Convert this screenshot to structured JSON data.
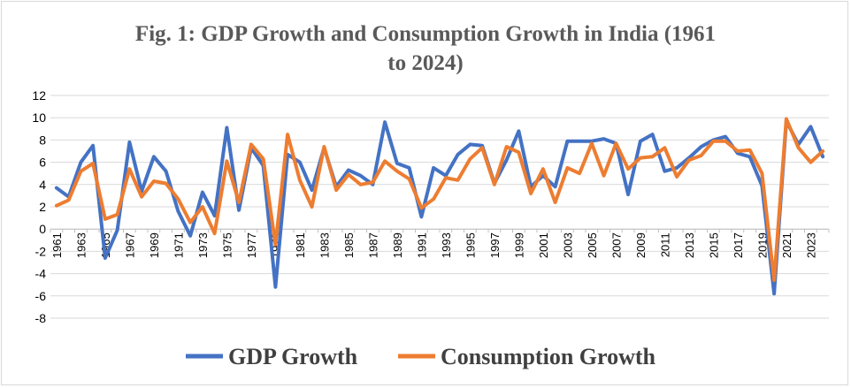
{
  "chart_data": {
    "type": "line",
    "title_line1": "Fig. 1: GDP Growth and Consumption Growth in India (1961",
    "title_line2": "to 2024)",
    "xlabel": "",
    "ylabel": "",
    "ylim": [
      -8,
      12
    ],
    "yticks": [
      12,
      10,
      8,
      6,
      4,
      2,
      0,
      -2,
      -4,
      -6,
      -8
    ],
    "x": [
      1961,
      1962,
      1963,
      1964,
      1965,
      1966,
      1967,
      1968,
      1969,
      1970,
      1971,
      1972,
      1973,
      1974,
      1975,
      1976,
      1977,
      1978,
      1979,
      1980,
      1981,
      1982,
      1983,
      1984,
      1985,
      1986,
      1987,
      1988,
      1989,
      1990,
      1991,
      1992,
      1993,
      1994,
      1995,
      1996,
      1997,
      1998,
      1999,
      2000,
      2001,
      2002,
      2003,
      2004,
      2005,
      2006,
      2007,
      2008,
      2009,
      2010,
      2011,
      2012,
      2013,
      2014,
      2015,
      2016,
      2017,
      2018,
      2019,
      2020,
      2021,
      2022,
      2023,
      2024
    ],
    "xtick_labels": [
      "1961",
      "1963",
      "1965",
      "1967",
      "1969",
      "1971",
      "1973",
      "1975",
      "1977",
      "1979",
      "1981",
      "1983",
      "1985",
      "1987",
      "1989",
      "1991",
      "1993",
      "1995",
      "1997",
      "1999",
      "2001",
      "2003",
      "2005",
      "2007",
      "2009",
      "2011",
      "2013",
      "2015",
      "2017",
      "2019",
      "2021",
      "2023"
    ],
    "series": [
      {
        "name": "GDP Growth",
        "color": "#4472c4",
        "values": [
          3.7,
          2.9,
          6.0,
          7.5,
          -2.6,
          -0.1,
          7.8,
          3.4,
          6.5,
          5.2,
          1.6,
          -0.6,
          3.3,
          1.2,
          9.1,
          1.7,
          7.3,
          5.7,
          -5.2,
          6.7,
          6.0,
          3.5,
          7.3,
          3.8,
          5.3,
          4.8,
          4.0,
          9.6,
          5.9,
          5.5,
          1.1,
          5.5,
          4.8,
          6.7,
          7.6,
          7.5,
          4.1,
          6.2,
          8.8,
          3.8,
          4.8,
          3.8,
          7.9,
          7.9,
          7.9,
          8.1,
          7.7,
          3.1,
          7.9,
          8.5,
          5.2,
          5.5,
          6.4,
          7.4,
          8.0,
          8.3,
          6.8,
          6.5,
          3.9,
          -5.8,
          9.7,
          7.6,
          9.2,
          6.5
        ]
      },
      {
        "name": "Consumption Growth",
        "color": "#ed7d31",
        "values": [
          2.1,
          2.6,
          5.2,
          5.9,
          0.9,
          1.3,
          5.4,
          2.9,
          4.3,
          4.1,
          2.7,
          0.6,
          2.0,
          -0.4,
          6.1,
          2.4,
          7.6,
          6.3,
          -1.4,
          8.5,
          4.4,
          2.0,
          7.4,
          3.5,
          4.9,
          4.0,
          4.2,
          6.1,
          5.2,
          4.5,
          1.9,
          2.7,
          4.6,
          4.4,
          6.3,
          7.3,
          4.0,
          7.4,
          6.9,
          3.2,
          5.4,
          2.4,
          5.5,
          5.0,
          7.7,
          4.8,
          7.7,
          5.4,
          6.4,
          6.5,
          7.3,
          4.7,
          6.2,
          6.6,
          7.9,
          7.9,
          7.0,
          7.1,
          5.0,
          -4.6,
          9.9,
          7.3,
          6.0,
          7.0
        ]
      }
    ],
    "legend": {
      "position": "bottom-center",
      "entries": [
        "GDP Growth",
        "Consumption Growth"
      ]
    }
  }
}
